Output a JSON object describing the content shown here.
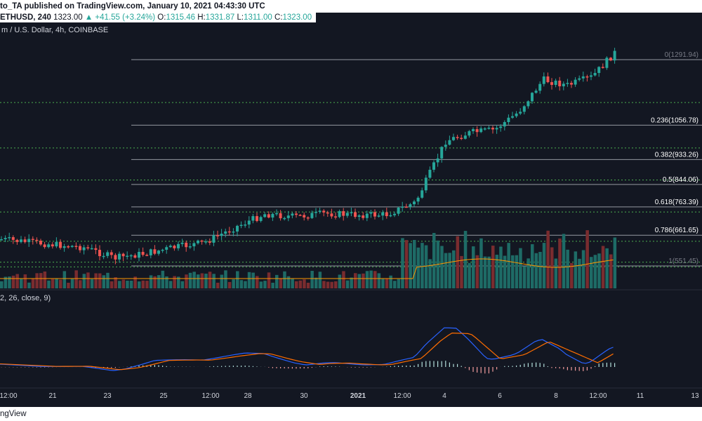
{
  "header": {
    "author_line": "to_TA published on TradingView.com, January 10, 2021 04:43:30 UTC",
    "symbol": "ETHUSD, 240",
    "price": "1323.00",
    "change": "▲ +41.55 (+3.24%)",
    "o_label": "O:",
    "o_value": "1315.46",
    "h_label": "H:",
    "h_value": "1331.87",
    "l_label": "L:",
    "l_value": "1311.00",
    "c_label": "C:",
    "c_value": "1323.00",
    "subtitle": "m / U.S. Dollar, 4h, COINBASE",
    "macd_label": "2, 26, close, 9)"
  },
  "footer": {
    "brand": "ngView"
  },
  "colors": {
    "bg": "#131722",
    "up": "#26a69a",
    "down": "#ef5350",
    "vol_up": "#1e6b66",
    "vol_down": "#7a2c2f",
    "fib": "#9598a1",
    "green_dotted": "#4caf50",
    "macd": "#2962ff",
    "signal": "#ff6d00",
    "volume_ma": "#ff9800"
  },
  "chart_data": {
    "type": "candlestick",
    "symbol": "ETHUSD",
    "interval": "4h",
    "exchange": "COINBASE",
    "x_ticks": [
      "12:00",
      "21",
      "23",
      "25",
      "12:00",
      "28",
      "30",
      "2021",
      "12:00",
      "4",
      "6",
      "8",
      "12:00",
      "11",
      "13"
    ],
    "fib_levels": [
      {
        "ratio": "0",
        "price": 1291.94,
        "label": "0(1291.94)"
      },
      {
        "ratio": "0.236",
        "price": 1056.78,
        "label": "0.236(1056.78)"
      },
      {
        "ratio": "0.382",
        "price": 933.26,
        "label": "0.382(933.26)"
      },
      {
        "ratio": "0.5",
        "price": 844.06,
        "label": "0.5(844.06)"
      },
      {
        "ratio": "0.618",
        "price": 763.39,
        "label": "0.618(763.39)"
      },
      {
        "ratio": "0.786",
        "price": 661.65,
        "label": "0.786(661.65)"
      },
      {
        "ratio": "1",
        "price": 551.45,
        "label": "1(551.45)"
      }
    ],
    "green_levels": [
      1138,
      975,
      860,
      745,
      640,
      565,
      548
    ],
    "close_path": [
      {
        "date": "2020-12-20",
        "close": 650
      },
      {
        "date": "2020-12-21",
        "close": 628
      },
      {
        "date": "2020-12-22",
        "close": 618
      },
      {
        "date": "2020-12-23",
        "close": 580
      },
      {
        "date": "2020-12-24",
        "close": 596
      },
      {
        "date": "2020-12-25",
        "close": 618
      },
      {
        "date": "2020-12-26",
        "close": 636
      },
      {
        "date": "2020-12-27",
        "close": 690
      },
      {
        "date": "2020-12-28",
        "close": 738
      },
      {
        "date": "2020-12-29",
        "close": 728
      },
      {
        "date": "2020-12-30",
        "close": 740
      },
      {
        "date": "2020-12-31",
        "close": 735
      },
      {
        "date": "2021-01-01",
        "close": 735
      },
      {
        "date": "2021-01-02",
        "close": 780
      },
      {
        "date": "2021-01-03",
        "close": 1000
      },
      {
        "date": "2021-01-04",
        "close": 1030
      },
      {
        "date": "2021-01-05",
        "close": 1040
      },
      {
        "date": "2021-01-06",
        "close": 1105
      },
      {
        "date": "2021-01-07",
        "close": 1220
      },
      {
        "date": "2021-01-08",
        "close": 1200
      },
      {
        "date": "2021-01-09",
        "close": 1230
      },
      {
        "date": "2021-01-10",
        "close": 1323
      }
    ]
  }
}
